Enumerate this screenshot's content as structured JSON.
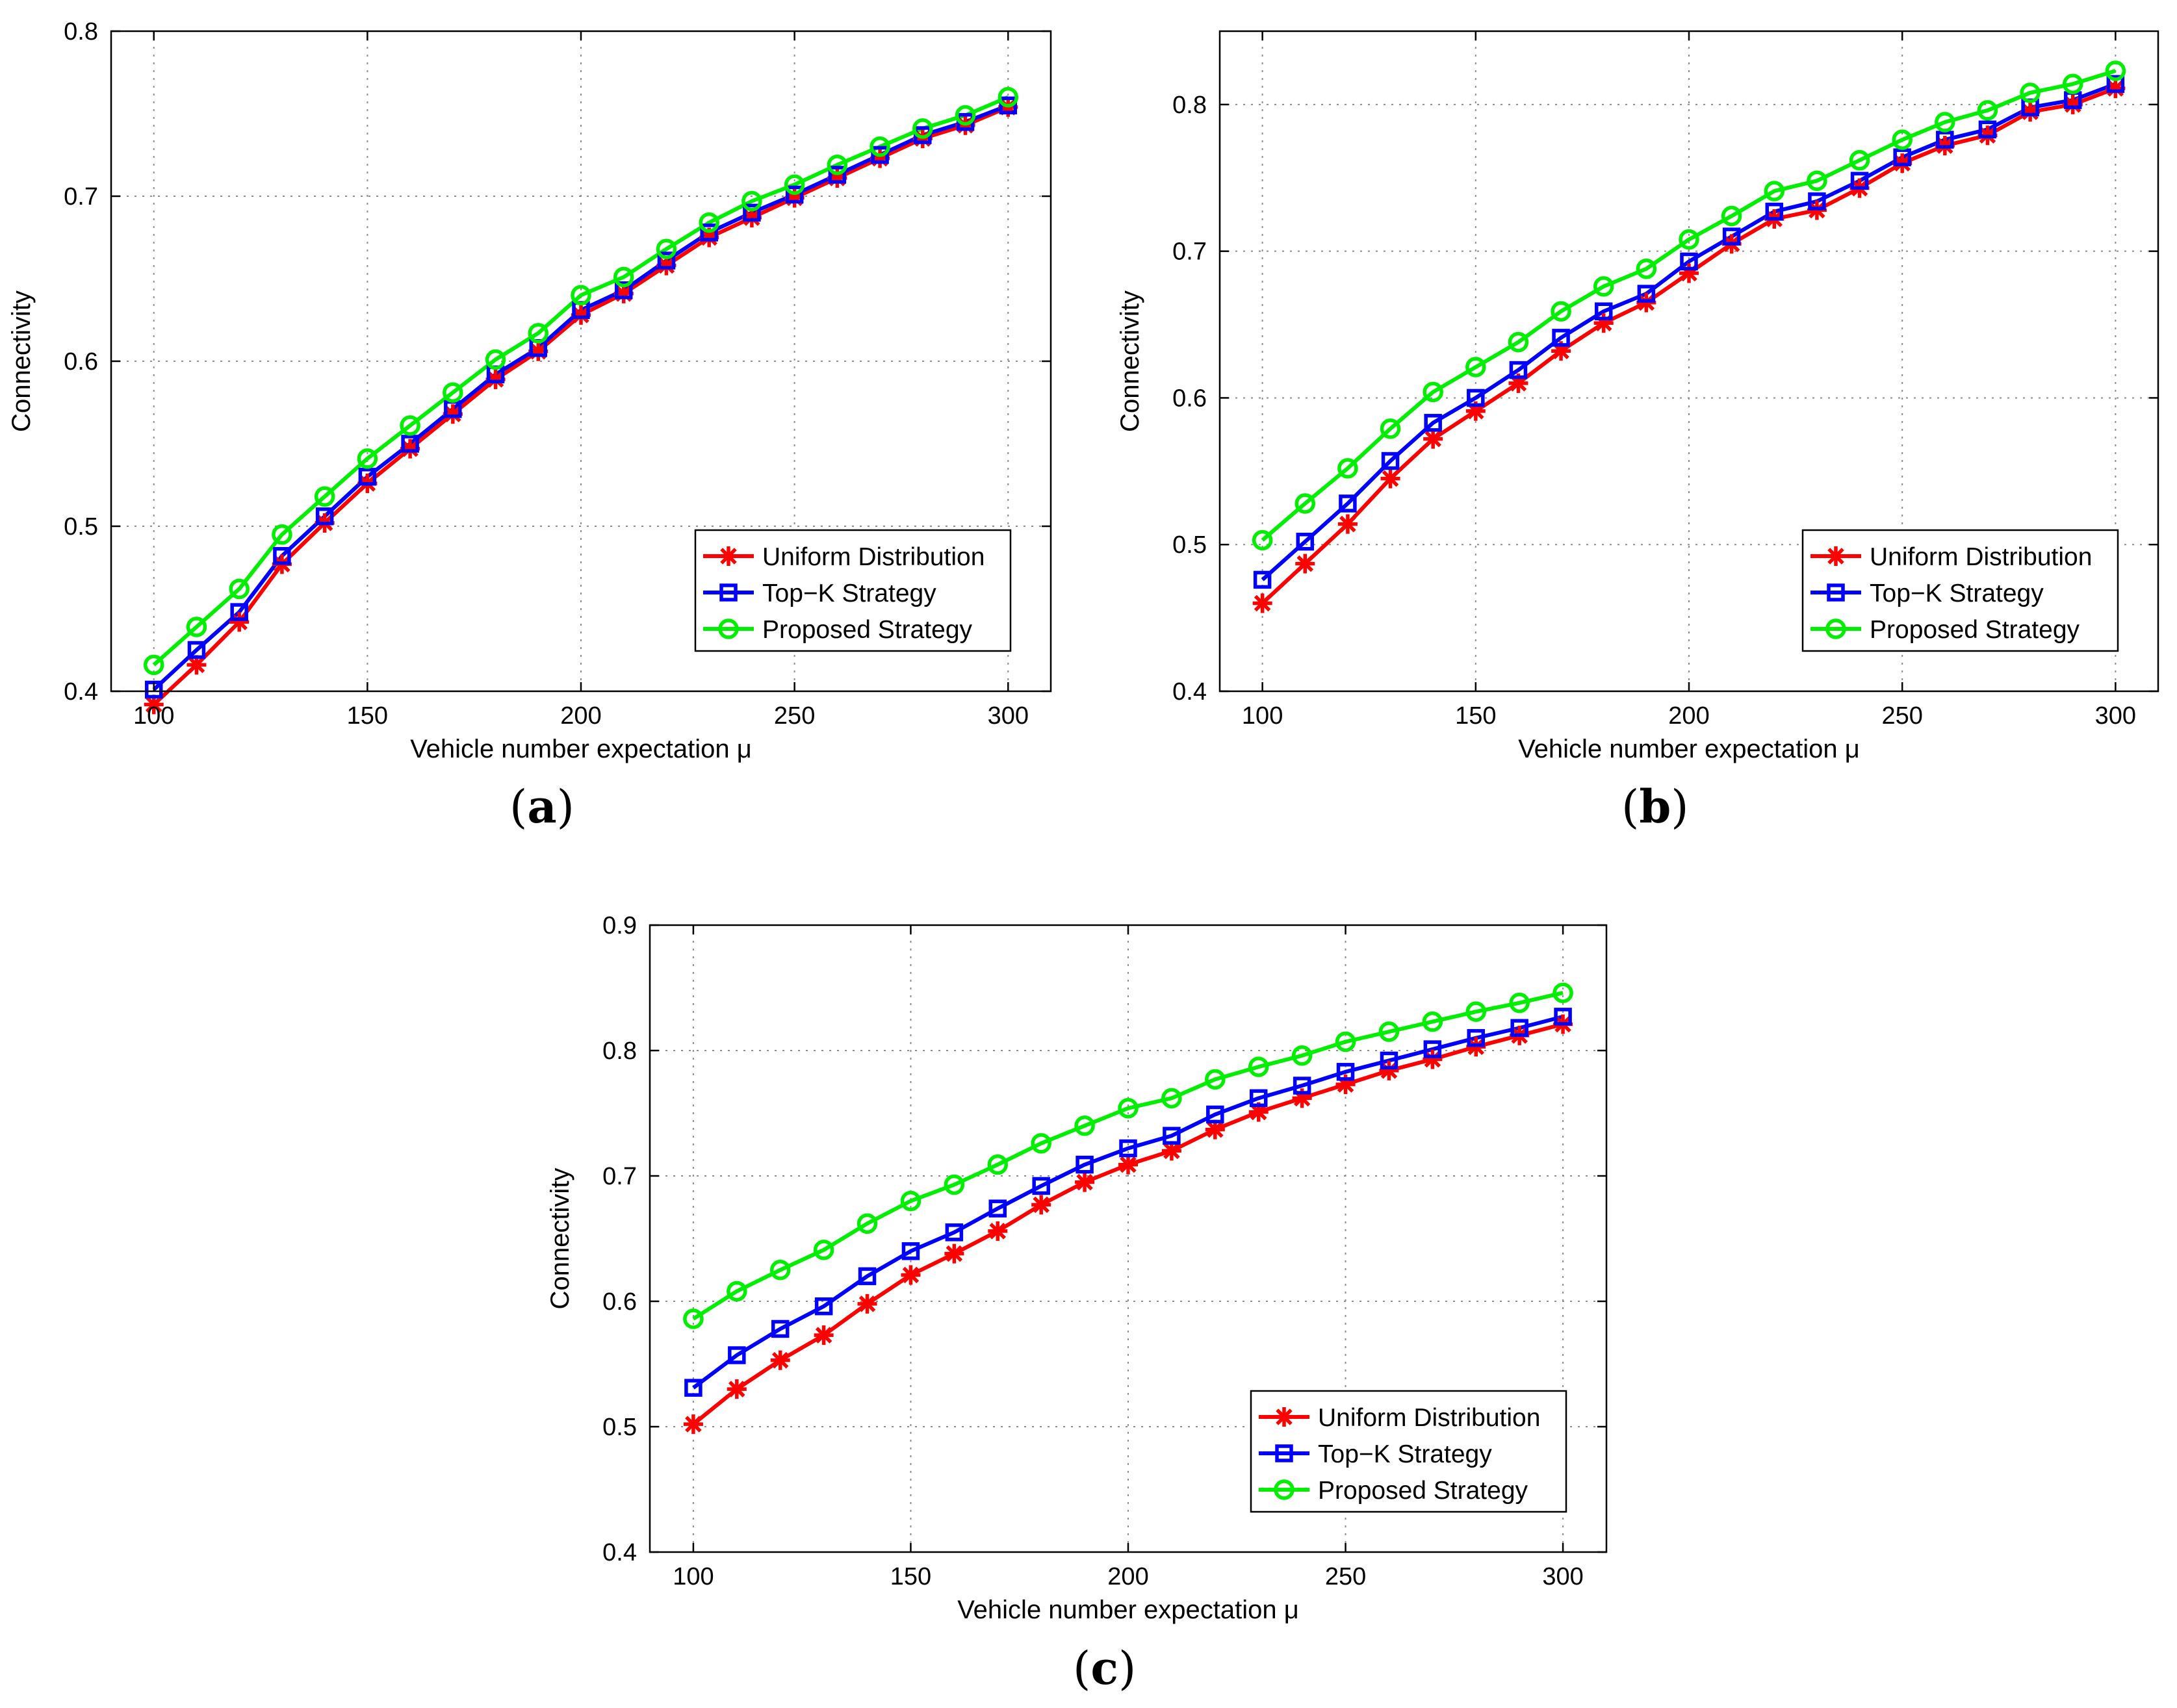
{
  "chart_data": [
    {
      "type": "line",
      "panel": "a",
      "caption": {
        "open": "(",
        "letter": "a",
        "close": ")"
      },
      "title": "",
      "xlabel": "Vehicle number expectation μ",
      "ylabel": "Connectivity",
      "xlim": [
        90,
        310
      ],
      "ylim": [
        0.4,
        0.8
      ],
      "xticks": [
        100,
        150,
        200,
        250,
        300
      ],
      "xtick_labels": [
        "100",
        "150",
        "200",
        "250",
        "300"
      ],
      "yticks": [
        0.4,
        0.5,
        0.6,
        0.7,
        0.8
      ],
      "ytick_labels": [
        "0.4",
        "0.5",
        "0.6",
        "0.7",
        "0.8"
      ],
      "grid": true,
      "legend_position": "bottom-right",
      "x": [
        100,
        110,
        120,
        130,
        140,
        150,
        160,
        170,
        180,
        190,
        200,
        210,
        220,
        230,
        240,
        250,
        260,
        270,
        280,
        290,
        300
      ],
      "series": [
        {
          "name": "Uniform Distribution",
          "color": "#ff0000",
          "marker": "star",
          "values": [
            0.392,
            0.416,
            0.442,
            0.477,
            0.502,
            0.526,
            0.547,
            0.568,
            0.589,
            0.606,
            0.628,
            0.641,
            0.658,
            0.675,
            0.687,
            0.699,
            0.711,
            0.723,
            0.735,
            0.743,
            0.754
          ]
        },
        {
          "name": "Top−K Strategy",
          "color": "#0000ff",
          "marker": "square",
          "values": [
            0.401,
            0.425,
            0.448,
            0.482,
            0.506,
            0.53,
            0.55,
            0.571,
            0.592,
            0.608,
            0.631,
            0.643,
            0.661,
            0.678,
            0.69,
            0.701,
            0.713,
            0.725,
            0.737,
            0.745,
            0.755
          ]
        },
        {
          "name": "Proposed Strategy",
          "color": "#00ee00",
          "marker": "circle",
          "values": [
            0.416,
            0.439,
            0.462,
            0.495,
            0.518,
            0.541,
            0.561,
            0.581,
            0.601,
            0.617,
            0.64,
            0.651,
            0.668,
            0.684,
            0.697,
            0.707,
            0.719,
            0.73,
            0.741,
            0.749,
            0.76
          ]
        }
      ]
    },
    {
      "type": "line",
      "panel": "b",
      "caption": {
        "open": "(",
        "letter": "b",
        "close": ")"
      },
      "title": "",
      "xlabel": "Vehicle number expectation μ",
      "ylabel": "Connectivity",
      "xlim": [
        90,
        310
      ],
      "ylim": [
        0.4,
        0.85
      ],
      "xticks": [
        100,
        150,
        200,
        250,
        300
      ],
      "xtick_labels": [
        "100",
        "150",
        "200",
        "250",
        "300"
      ],
      "yticks": [
        0.4,
        0.5,
        0.6,
        0.7,
        0.8
      ],
      "ytick_labels": [
        "0.4",
        "0.5",
        "0.6",
        "0.7",
        "0.8"
      ],
      "grid": true,
      "legend_position": "bottom-right",
      "x": [
        100,
        110,
        120,
        130,
        140,
        150,
        160,
        170,
        180,
        190,
        200,
        210,
        220,
        230,
        240,
        250,
        260,
        270,
        280,
        290,
        300
      ],
      "series": [
        {
          "name": "Uniform Distribution",
          "color": "#ff0000",
          "marker": "star",
          "values": [
            0.46,
            0.487,
            0.514,
            0.545,
            0.572,
            0.591,
            0.61,
            0.632,
            0.651,
            0.665,
            0.685,
            0.705,
            0.722,
            0.728,
            0.743,
            0.76,
            0.772,
            0.779,
            0.795,
            0.8,
            0.811
          ]
        },
        {
          "name": "Top−K Strategy",
          "color": "#0000ff",
          "marker": "square",
          "values": [
            0.476,
            0.502,
            0.528,
            0.557,
            0.583,
            0.6,
            0.619,
            0.641,
            0.659,
            0.671,
            0.693,
            0.71,
            0.727,
            0.734,
            0.748,
            0.764,
            0.776,
            0.783,
            0.798,
            0.803,
            0.814
          ]
        },
        {
          "name": "Proposed Strategy",
          "color": "#00ee00",
          "marker": "circle",
          "values": [
            0.503,
            0.528,
            0.552,
            0.579,
            0.604,
            0.621,
            0.638,
            0.659,
            0.676,
            0.688,
            0.708,
            0.724,
            0.741,
            0.748,
            0.762,
            0.776,
            0.788,
            0.796,
            0.808,
            0.814,
            0.823
          ]
        }
      ]
    },
    {
      "type": "line",
      "panel": "c",
      "caption": {
        "open": "(",
        "letter": "c",
        "close": ")"
      },
      "title": "",
      "xlabel": "Vehicle number expectation μ",
      "ylabel": "Connectivity",
      "xlim": [
        90,
        310
      ],
      "ylim": [
        0.4,
        0.9
      ],
      "xticks": [
        100,
        150,
        200,
        250,
        300
      ],
      "xtick_labels": [
        "100",
        "150",
        "200",
        "250",
        "300"
      ],
      "yticks": [
        0.4,
        0.5,
        0.6,
        0.7,
        0.8,
        0.9
      ],
      "ytick_labels": [
        "0.4",
        "0.5",
        "0.6",
        "0.7",
        "0.8",
        "0.9"
      ],
      "grid": true,
      "legend_position": "bottom-right",
      "x": [
        100,
        110,
        120,
        130,
        140,
        150,
        160,
        170,
        180,
        190,
        200,
        210,
        220,
        230,
        240,
        250,
        260,
        270,
        280,
        290,
        300
      ],
      "series": [
        {
          "name": "Uniform Distribution",
          "color": "#ff0000",
          "marker": "star",
          "values": [
            0.502,
            0.53,
            0.553,
            0.573,
            0.598,
            0.621,
            0.638,
            0.656,
            0.677,
            0.695,
            0.709,
            0.72,
            0.737,
            0.751,
            0.762,
            0.773,
            0.784,
            0.793,
            0.803,
            0.812,
            0.821
          ]
        },
        {
          "name": "Top−K Strategy",
          "color": "#0000ff",
          "marker": "square",
          "values": [
            0.531,
            0.557,
            0.578,
            0.596,
            0.62,
            0.64,
            0.655,
            0.674,
            0.692,
            0.709,
            0.722,
            0.732,
            0.749,
            0.762,
            0.772,
            0.783,
            0.792,
            0.801,
            0.81,
            0.818,
            0.827
          ]
        },
        {
          "name": "Proposed Strategy",
          "color": "#00ee00",
          "marker": "circle",
          "values": [
            0.586,
            0.608,
            0.625,
            0.641,
            0.662,
            0.68,
            0.693,
            0.709,
            0.726,
            0.74,
            0.754,
            0.762,
            0.777,
            0.787,
            0.796,
            0.807,
            0.815,
            0.823,
            0.831,
            0.838,
            0.846
          ]
        }
      ]
    }
  ]
}
